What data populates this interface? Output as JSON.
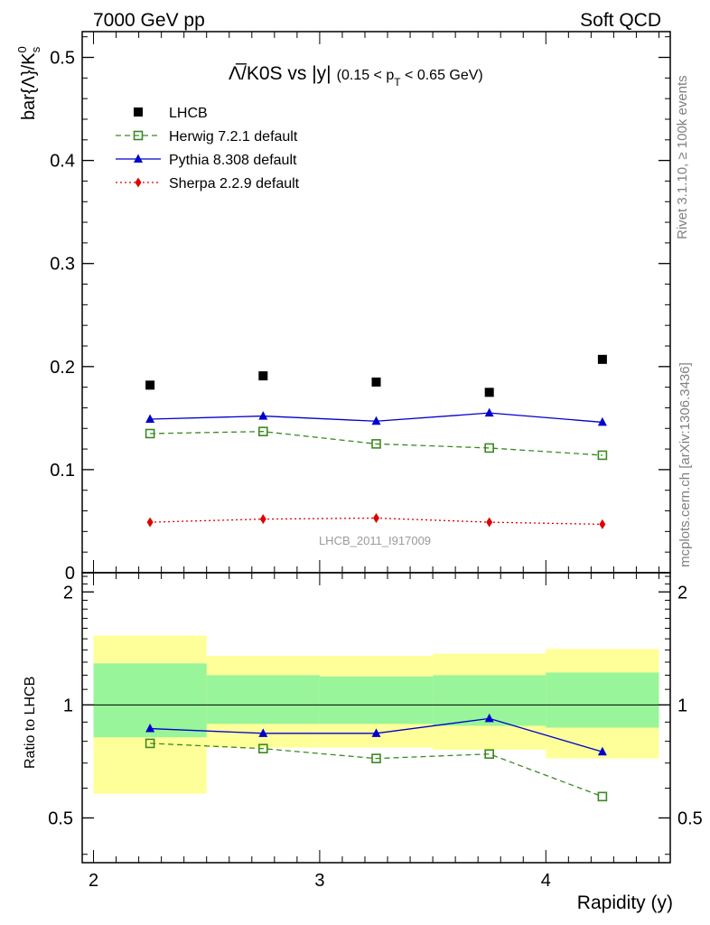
{
  "header": {
    "left": "7000 GeV pp",
    "right": "Soft QCD"
  },
  "side_labels": {
    "rivet": "Rivet 3.1.10, ≥ 100k events",
    "mcplots": "mcplots.cern.ch [arXiv:1306.3436]"
  },
  "chart_data": [
    {
      "type": "scatter",
      "title": {
        "main": "Λ̅/K0S vs |y|",
        "cut_open": "(0.15 < p",
        "cut_sub": "T",
        "cut_close": " < 0.65 GeV)"
      },
      "ylabel": {
        "main": "bar{Λ}/K",
        "sup": "0",
        "sub": "s"
      },
      "ylim": [
        0,
        0.525
      ],
      "xlim": [
        1.95,
        4.55
      ],
      "yticks": [
        {
          "v": 0,
          "label": "0"
        },
        {
          "v": 0.1,
          "label": "0.1"
        },
        {
          "v": 0.2,
          "label": "0.2"
        },
        {
          "v": 0.3,
          "label": "0.3"
        },
        {
          "v": 0.4,
          "label": "0.4"
        },
        {
          "v": 0.5,
          "label": "0.5"
        }
      ],
      "watermark": "LHCB_2011_I917009",
      "legend_position": "top-left",
      "x": [
        2.25,
        2.75,
        3.25,
        3.75,
        4.25
      ],
      "series": [
        {
          "name": "LHCB",
          "marker": "square-filled",
          "line": "none",
          "color": "#000000",
          "values": [
            0.182,
            0.191,
            0.185,
            0.175,
            0.207
          ]
        },
        {
          "name": "Herwig 7.2.1 default",
          "marker": "square-open",
          "line": "dashed",
          "color": "#3a8a1e",
          "values": [
            0.135,
            0.137,
            0.125,
            0.121,
            0.114
          ]
        },
        {
          "name": "Pythia 8.308 default",
          "marker": "triangle-filled",
          "line": "solid",
          "color": "#0000cc",
          "values": [
            0.149,
            0.152,
            0.147,
            0.155,
            0.146
          ]
        },
        {
          "name": "Sherpa 2.2.9 default",
          "marker": "diamond-filled",
          "line": "dotted",
          "color": "#e00000",
          "values": [
            0.049,
            0.052,
            0.053,
            0.049,
            0.047
          ]
        }
      ]
    },
    {
      "type": "line",
      "ylabel": "Ratio to LHCB",
      "xlabel": "Rapidity (y)",
      "ylim": [
        0.38,
        2.25
      ],
      "xlim": [
        1.95,
        4.55
      ],
      "xticks": [
        {
          "v": 2,
          "label": "2"
        },
        {
          "v": 3,
          "label": "3"
        },
        {
          "v": 4,
          "label": "4"
        }
      ],
      "yticks": [
        {
          "v": 0.5,
          "label": "0.5"
        },
        {
          "v": 1,
          "label": "1"
        },
        {
          "v": 2,
          "label": "2"
        }
      ],
      "bands": [
        {
          "x0": 2.0,
          "x1": 2.5,
          "yellow": [
            0.58,
            1.53
          ],
          "green": [
            0.82,
            1.29
          ]
        },
        {
          "x0": 2.5,
          "x1": 3.0,
          "yellow": [
            0.77,
            1.35
          ],
          "green": [
            0.89,
            1.2
          ]
        },
        {
          "x0": 3.0,
          "x1": 3.5,
          "yellow": [
            0.77,
            1.35
          ],
          "green": [
            0.89,
            1.19
          ]
        },
        {
          "x0": 3.5,
          "x1": 4.0,
          "yellow": [
            0.76,
            1.37
          ],
          "green": [
            0.88,
            1.2
          ]
        },
        {
          "x0": 4.0,
          "x1": 4.5,
          "yellow": [
            0.72,
            1.41
          ],
          "green": [
            0.87,
            1.22
          ]
        }
      ],
      "x": [
        2.25,
        2.75,
        3.25,
        3.75,
        4.25
      ],
      "series": [
        {
          "name": "Herwig 7.2.1 default",
          "marker": "square-open",
          "line": "dashed",
          "color": "#3a8a1e",
          "values": [
            0.79,
            0.765,
            0.72,
            0.74,
            0.57
          ]
        },
        {
          "name": "Pythia 8.308 default",
          "marker": "triangle-filled",
          "line": "solid",
          "color": "#0000cc",
          "values": [
            0.865,
            0.84,
            0.84,
            0.92,
            0.75
          ]
        }
      ]
    }
  ]
}
